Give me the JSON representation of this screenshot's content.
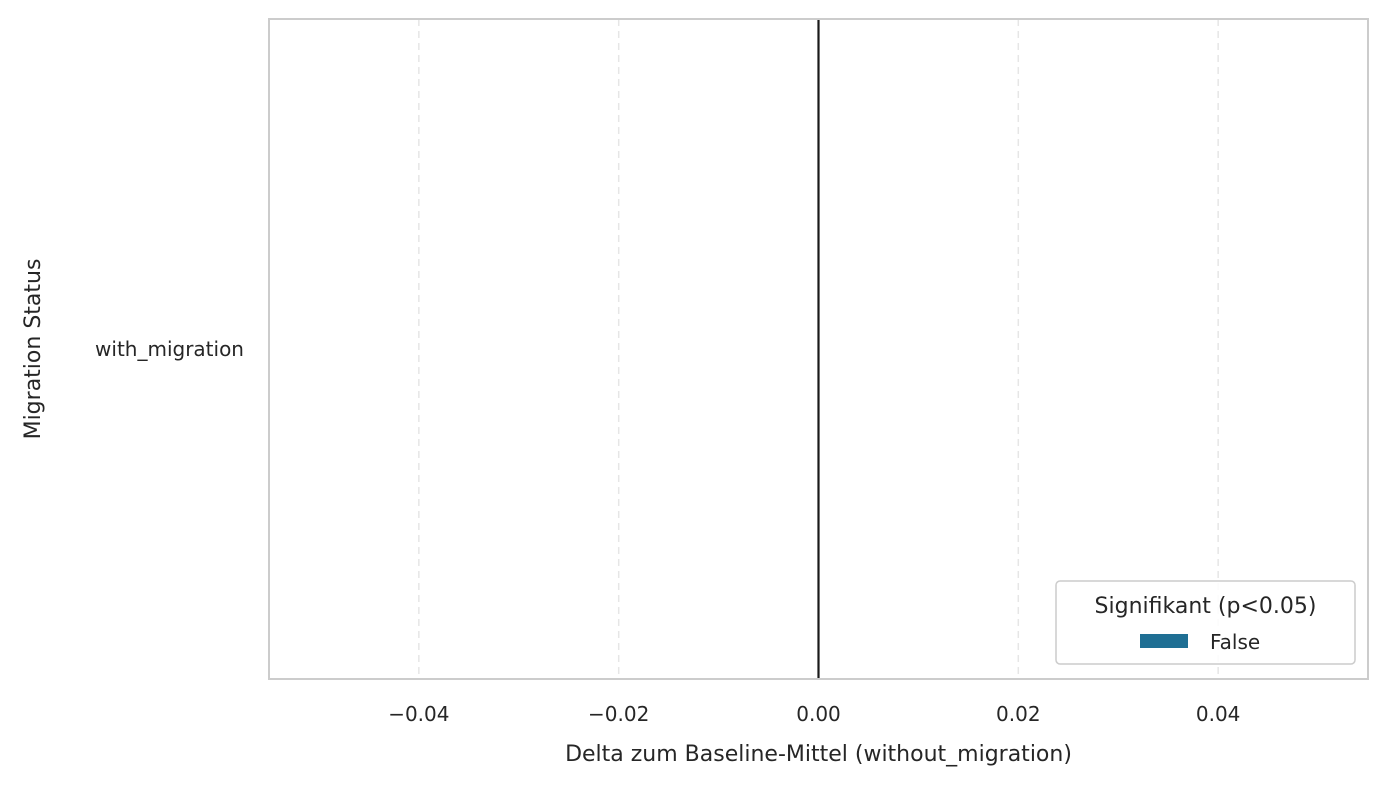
{
  "chart_data": {
    "type": "bar",
    "orientation": "horizontal",
    "title": "",
    "xlabel": "Delta zum Baseline-Mittel (without_migration)",
    "ylabel": "Migration Status",
    "categories": [
      "with_migration"
    ],
    "series": [
      {
        "name": "False",
        "values": [
          0.0
        ],
        "color": "#1f6f94"
      }
    ],
    "xlim": [
      -0.055,
      0.055
    ],
    "x_ticks": [
      -0.04,
      -0.02,
      0.0,
      0.02,
      0.04
    ],
    "x_tick_labels": [
      "−0.04",
      "−0.02",
      "0.00",
      "0.02",
      "0.04"
    ],
    "reference_line_x": 0.0,
    "grid": "x, dashed",
    "legend": {
      "title": "Signifikant (p<0.05)",
      "entries": [
        "False"
      ],
      "placement": "lower-right"
    }
  }
}
